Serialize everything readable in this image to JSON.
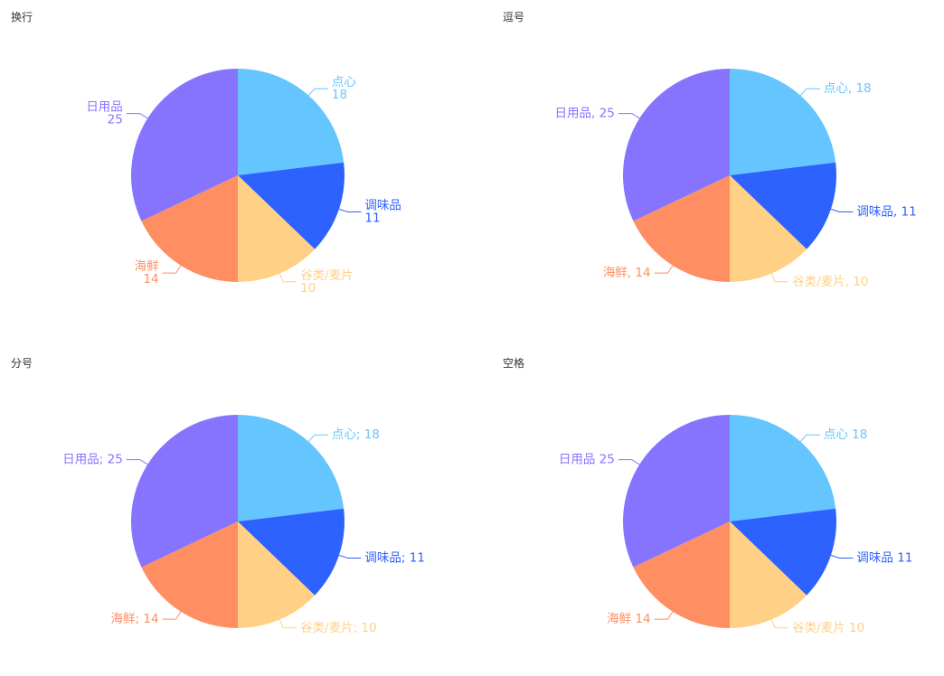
{
  "chart_data": [
    {
      "type": "pie",
      "title": "换行",
      "separator": "\n",
      "categories": [
        "点心",
        "调味品",
        "谷类/麦片",
        "海鲜",
        "日用品"
      ],
      "values": [
        18,
        11,
        10,
        14,
        25
      ],
      "labels": [
        "点心\n18",
        "调味品\n11",
        "谷类/麦片\n10",
        "海鲜\n14",
        "日用品\n25"
      ]
    },
    {
      "type": "pie",
      "title": "逗号",
      "separator": ", ",
      "categories": [
        "点心",
        "调味品",
        "谷类/麦片",
        "海鲜",
        "日用品"
      ],
      "values": [
        18,
        11,
        10,
        14,
        25
      ],
      "labels": [
        "点心, 18",
        "调味品, 11",
        "谷类/麦片, 10",
        "海鲜, 14",
        "日用品, 25"
      ]
    },
    {
      "type": "pie",
      "title": "分号",
      "separator": "; ",
      "categories": [
        "点心",
        "调味品",
        "谷类/麦片",
        "海鲜",
        "日用品"
      ],
      "values": [
        18,
        11,
        10,
        14,
        25
      ],
      "labels": [
        "点心; 18",
        "调味品; 11",
        "谷类/麦片; 10",
        "海鲜; 14",
        "日用品; 25"
      ]
    },
    {
      "type": "pie",
      "title": "空格",
      "separator": " ",
      "categories": [
        "点心",
        "调味品",
        "谷类/麦片",
        "海鲜",
        "日用品"
      ],
      "values": [
        18,
        11,
        10,
        14,
        25
      ],
      "labels": [
        "点心 18",
        "调味品 11",
        "谷类/麦片 10",
        "海鲜 14",
        "日用品 25"
      ]
    }
  ],
  "colors": [
    "#65C6FF",
    "#2D62FF",
    "#FFD085",
    "#FF8F63",
    "#8674FF"
  ]
}
